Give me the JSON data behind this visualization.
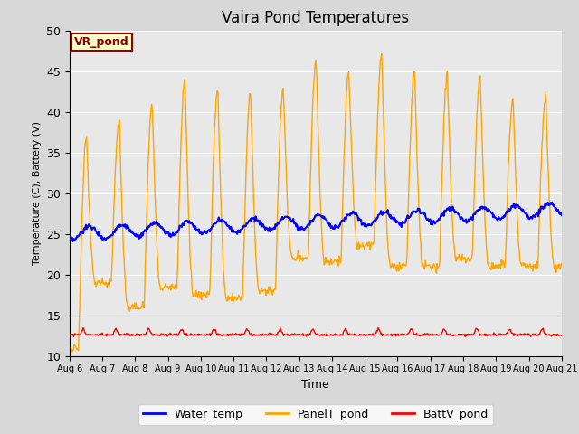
{
  "title": "Vaira Pond Temperatures",
  "xlabel": "Time",
  "ylabel": "Temperature (C), Battery (V)",
  "ylim": [
    10,
    50
  ],
  "yticks": [
    10,
    15,
    20,
    25,
    30,
    35,
    40,
    45,
    50
  ],
  "x_tick_labels": [
    "Aug 6",
    "Aug 7",
    "Aug 8",
    "Aug 9",
    "Aug 10",
    "Aug 11",
    "Aug 12",
    "Aug 13",
    "Aug 14",
    "Aug 15",
    "Aug 16",
    "Aug 17",
    "Aug 18",
    "Aug 19",
    "Aug 20",
    "Aug 21"
  ],
  "legend_labels": [
    "Water_temp",
    "PanelT_pond",
    "BattV_pond"
  ],
  "water_color": "blue",
  "panel_color": "orange",
  "batt_color": "red",
  "bg_color": "#d8d8d8",
  "plot_bg_color": "#e8e8e8",
  "annotation_text": "VR_pond",
  "annotation_bg": "#ffffcc",
  "annotation_border": "#8B0000",
  "title_fontsize": 12,
  "n_days": 15
}
